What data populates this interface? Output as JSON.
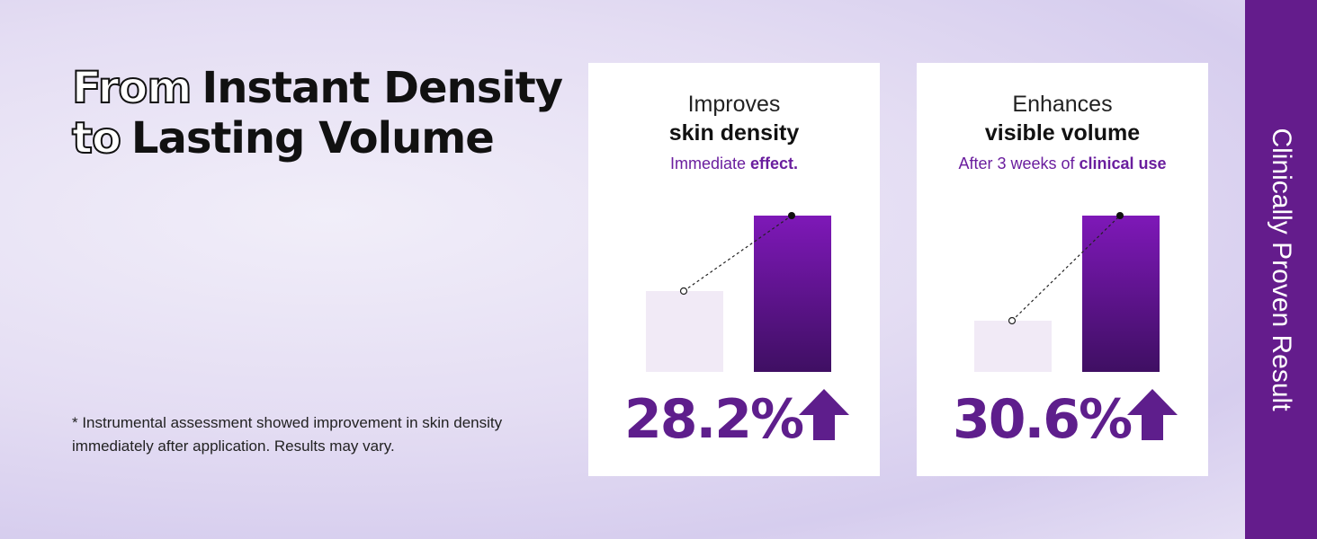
{
  "headline": {
    "line1": {
      "outline": "From",
      "solid": "Instant Density"
    },
    "line2": {
      "outline": "to",
      "solid": "Lasting Volume"
    }
  },
  "footnote": "* Instrumental assessment showed improvement in skin density immediately after application. Results may vary.",
  "cards": [
    {
      "title": "Improves",
      "title_bold": "skin density",
      "subtitle": "Immediate",
      "subtitle_bold": "effect.",
      "stat": "28.2%"
    },
    {
      "title": "Enhances",
      "title_bold": "visible volume",
      "subtitle": "After 3 weeks of",
      "subtitle_bold": "clinical use",
      "stat": "30.6%"
    }
  ],
  "sidebar": "Clinically Proven Result"
}
